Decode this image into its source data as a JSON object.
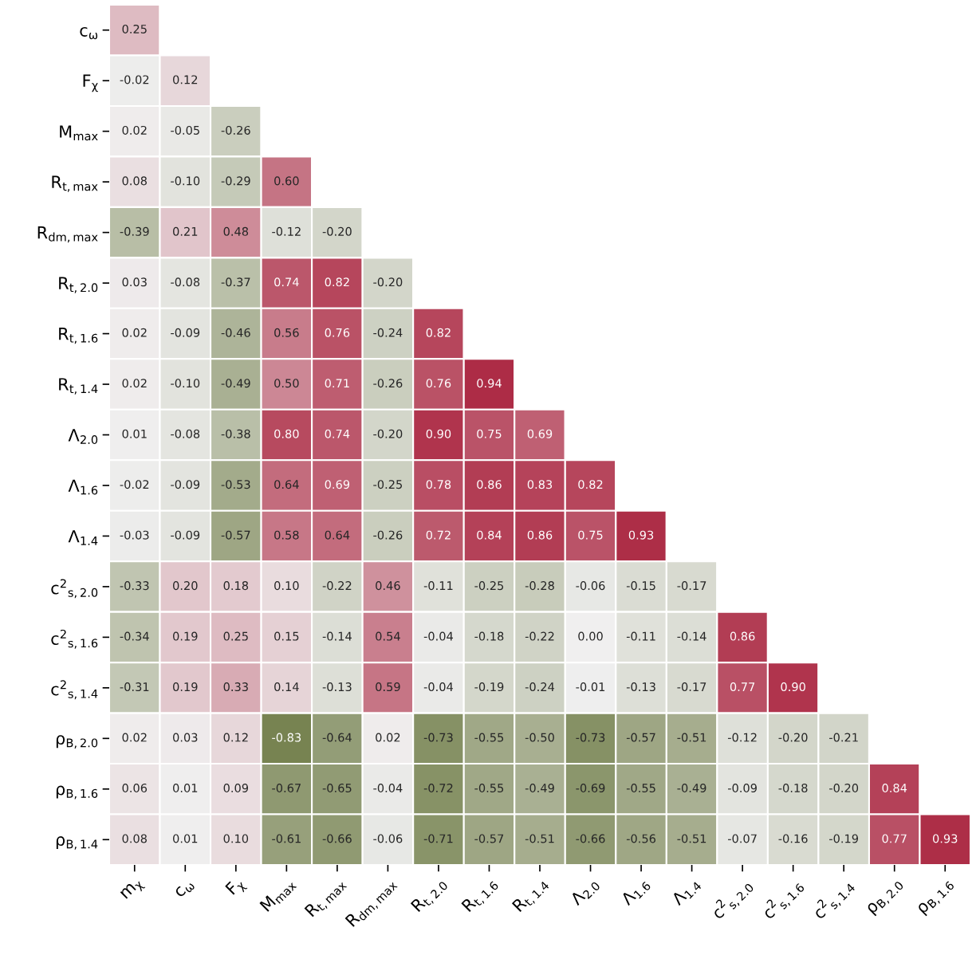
{
  "chart_data": {
    "type": "heatmap",
    "categories": [
      "m$_{χ}$",
      "c$_{ω}$",
      "F$_{χ}$",
      "M$_{max}$",
      "R$_{t,max}$",
      "R$_{dm,max}$",
      "R$_{t,2.0}$",
      "R$_{t,1.6}$",
      "R$_{t,1.4}$",
      "Λ$_{2.0}$",
      "Λ$_{1.6}$",
      "Λ$_{1.4}$",
      "c$^{2}$$_{s,2.0}$",
      "c$^{2}$$_{s,1.6}$",
      "c$^{2}$$_{s,1.4}$",
      "ρ$_{B,2.0}$",
      "ρ$_{B,1.6}$"
    ],
    "y_categories": [
      "c$_{ω}$",
      "F$_{χ}$",
      "M$_{max}$",
      "R$_{t,max}$",
      "R$_{dm,max}$",
      "R$_{t,2.0}$",
      "R$_{t,1.6}$",
      "R$_{t,1.4}$",
      "Λ$_{2.0}$",
      "Λ$_{1.6}$",
      "Λ$_{1.4}$",
      "c$^{2}$$_{s,2.0}$",
      "c$^{2}$$_{s,1.6}$",
      "c$^{2}$$_{s,1.4}$",
      "ρ$_{B,2.0}$",
      "ρ$_{B,1.6}$",
      "ρ$_{B,1.4}$"
    ],
    "data_labels": true,
    "colors": [
      "#5f6e32",
      "#f0f0f0",
      "#a9213c"
    ],
    "grid": false,
    "cells": [
      [
        0.25,
        null,
        null,
        null,
        null,
        null,
        null,
        null,
        null,
        null,
        null,
        null,
        null,
        null,
        null,
        null,
        null
      ],
      [
        -0.02,
        0.12,
        null,
        null,
        null,
        null,
        null,
        null,
        null,
        null,
        null,
        null,
        null,
        null,
        null,
        null,
        null
      ],
      [
        0.02,
        -0.05,
        -0.26,
        null,
        null,
        null,
        null,
        null,
        null,
        null,
        null,
        null,
        null,
        null,
        null,
        null,
        null
      ],
      [
        0.08,
        -0.1,
        -0.29,
        0.6,
        null,
        null,
        null,
        null,
        null,
        null,
        null,
        null,
        null,
        null,
        null,
        null,
        null
      ],
      [
        -0.39,
        0.21,
        0.48,
        -0.12,
        -0.2,
        null,
        null,
        null,
        null,
        null,
        null,
        null,
        null,
        null,
        null,
        null,
        null
      ],
      [
        0.03,
        -0.08,
        -0.37,
        0.74,
        0.82,
        -0.2,
        null,
        null,
        null,
        null,
        null,
        null,
        null,
        null,
        null,
        null,
        null
      ],
      [
        0.02,
        -0.09,
        -0.46,
        0.56,
        0.76,
        -0.24,
        0.82,
        null,
        null,
        null,
        null,
        null,
        null,
        null,
        null,
        null,
        null
      ],
      [
        0.02,
        -0.1,
        -0.49,
        0.5,
        0.71,
        -0.26,
        0.76,
        0.94,
        null,
        null,
        null,
        null,
        null,
        null,
        null,
        null,
        null
      ],
      [
        0.01,
        -0.08,
        -0.38,
        0.8,
        0.74,
        -0.2,
        0.9,
        0.75,
        0.69,
        null,
        null,
        null,
        null,
        null,
        null,
        null,
        null
      ],
      [
        -0.02,
        -0.09,
        -0.53,
        0.64,
        0.69,
        -0.25,
        0.78,
        0.86,
        0.83,
        0.82,
        null,
        null,
        null,
        null,
        null,
        null,
        null
      ],
      [
        -0.03,
        -0.09,
        -0.57,
        0.58,
        0.64,
        -0.26,
        0.72,
        0.84,
        0.86,
        0.75,
        0.93,
        null,
        null,
        null,
        null,
        null,
        null
      ],
      [
        -0.33,
        0.2,
        0.18,
        0.1,
        -0.22,
        0.46,
        -0.11,
        -0.25,
        -0.28,
        -0.06,
        -0.15,
        -0.17,
        null,
        null,
        null,
        null,
        null
      ],
      [
        -0.34,
        0.19,
        0.25,
        0.15,
        -0.14,
        0.54,
        -0.04,
        -0.18,
        -0.22,
        0.0,
        -0.11,
        -0.14,
        0.86,
        null,
        null,
        null,
        null
      ],
      [
        -0.31,
        0.19,
        0.33,
        0.14,
        -0.13,
        0.59,
        -0.04,
        -0.19,
        -0.24,
        -0.01,
        -0.13,
        -0.17,
        0.77,
        0.9,
        null,
        null,
        null
      ],
      [
        0.02,
        0.03,
        0.12,
        -0.83,
        -0.64,
        0.02,
        -0.73,
        -0.55,
        -0.5,
        -0.73,
        -0.57,
        -0.51,
        -0.12,
        -0.2,
        -0.21,
        null,
        null
      ],
      [
        0.06,
        0.01,
        0.09,
        -0.67,
        -0.65,
        -0.04,
        -0.72,
        -0.55,
        -0.49,
        -0.69,
        -0.55,
        -0.49,
        -0.09,
        -0.18,
        -0.2,
        0.84,
        null
      ],
      [
        0.08,
        0.01,
        0.1,
        -0.61,
        -0.66,
        -0.06,
        -0.71,
        -0.57,
        -0.51,
        -0.66,
        -0.56,
        -0.51,
        -0.07,
        -0.16,
        -0.19,
        0.77,
        0.93
      ]
    ],
    "cell_labels": [
      [
        "0.25",
        null,
        null,
        null,
        null,
        null,
        null,
        null,
        null,
        null,
        null,
        null,
        null,
        null,
        null,
        null,
        null
      ],
      [
        "-0.02",
        "0.12",
        null,
        null,
        null,
        null,
        null,
        null,
        null,
        null,
        null,
        null,
        null,
        null,
        null,
        null,
        null
      ],
      [
        "0.02",
        "-0.05",
        "-0.26",
        null,
        null,
        null,
        null,
        null,
        null,
        null,
        null,
        null,
        null,
        null,
        null,
        null,
        null
      ],
      [
        "0.08",
        "-0.10",
        "-0.29",
        "0.60",
        null,
        null,
        null,
        null,
        null,
        null,
        null,
        null,
        null,
        null,
        null,
        null,
        null
      ],
      [
        "-0.39",
        "0.21",
        "0.48",
        "-0.12",
        "-0.20",
        null,
        null,
        null,
        null,
        null,
        null,
        null,
        null,
        null,
        null,
        null,
        null
      ],
      [
        "0.03",
        "-0.08",
        "-0.37",
        "0.74",
        "0.82",
        "-0.20",
        null,
        null,
        null,
        null,
        null,
        null,
        null,
        null,
        null,
        null,
        null
      ],
      [
        "0.02",
        "-0.09",
        "-0.46",
        "0.56",
        "0.76",
        "-0.24",
        "0.82",
        null,
        null,
        null,
        null,
        null,
        null,
        null,
        null,
        null,
        null
      ],
      [
        "0.02",
        "-0.10",
        "-0.49",
        "0.50",
        "0.71",
        "-0.26",
        "0.76",
        "0.94",
        null,
        null,
        null,
        null,
        null,
        null,
        null,
        null,
        null
      ],
      [
        "0.01",
        "-0.08",
        "-0.38",
        "0.80",
        "0.74",
        "-0.20",
        "0.90",
        "0.75",
        "0.69",
        null,
        null,
        null,
        null,
        null,
        null,
        null,
        null
      ],
      [
        "-0.02",
        "-0.09",
        "-0.53",
        "0.64",
        "0.69",
        "-0.25",
        "0.78",
        "0.86",
        "0.83",
        "0.82",
        null,
        null,
        null,
        null,
        null,
        null,
        null
      ],
      [
        "-0.03",
        "-0.09",
        "-0.57",
        "0.58",
        "0.64",
        "-0.26",
        "0.72",
        "0.84",
        "0.86",
        "0.75",
        "0.93",
        null,
        null,
        null,
        null,
        null,
        null
      ],
      [
        "-0.33",
        "0.20",
        "0.18",
        "0.10",
        "-0.22",
        "0.46",
        "-0.11",
        "-0.25",
        "-0.28",
        "-0.06",
        "-0.15",
        "-0.17",
        null,
        null,
        null,
        null,
        null
      ],
      [
        "-0.34",
        "0.19",
        "0.25",
        "0.15",
        "-0.14",
        "0.54",
        "-0.04",
        "-0.18",
        "-0.22",
        "0.00",
        "-0.11",
        "-0.14",
        "0.86",
        null,
        null,
        null,
        null
      ],
      [
        "-0.31",
        "0.19",
        "0.33",
        "0.14",
        "-0.13",
        "0.59",
        "-0.04",
        "-0.19",
        "-0.24",
        "-0.01",
        "-0.13",
        "-0.17",
        "0.77",
        "0.90",
        null,
        null,
        null
      ],
      [
        "0.02",
        "0.03",
        "0.12",
        "-0.83",
        "-0.64",
        "0.02",
        "-0.73",
        "-0.55",
        "-0.50",
        "-0.73",
        "-0.57",
        "-0.51",
        "-0.12",
        "-0.20",
        "-0.21",
        null,
        null
      ],
      [
        "0.06",
        "0.01",
        "0.09",
        "-0.67",
        "-0.65",
        "-0.04",
        "-0.72",
        "-0.55",
        "-0.49",
        "-0.69",
        "-0.55",
        "-0.49",
        "-0.09",
        "-0.18",
        "-0.20",
        "0.84",
        null
      ],
      [
        "0.08",
        "0.01",
        "0.10",
        "-0.61",
        "-0.66",
        "-0.06",
        "-0.71",
        "-0.57",
        "-0.51",
        "-0.66",
        "-0.56",
        "-0.51",
        "-0.07",
        "-0.16",
        "-0.19",
        "0.77",
        "0.93"
      ]
    ]
  }
}
